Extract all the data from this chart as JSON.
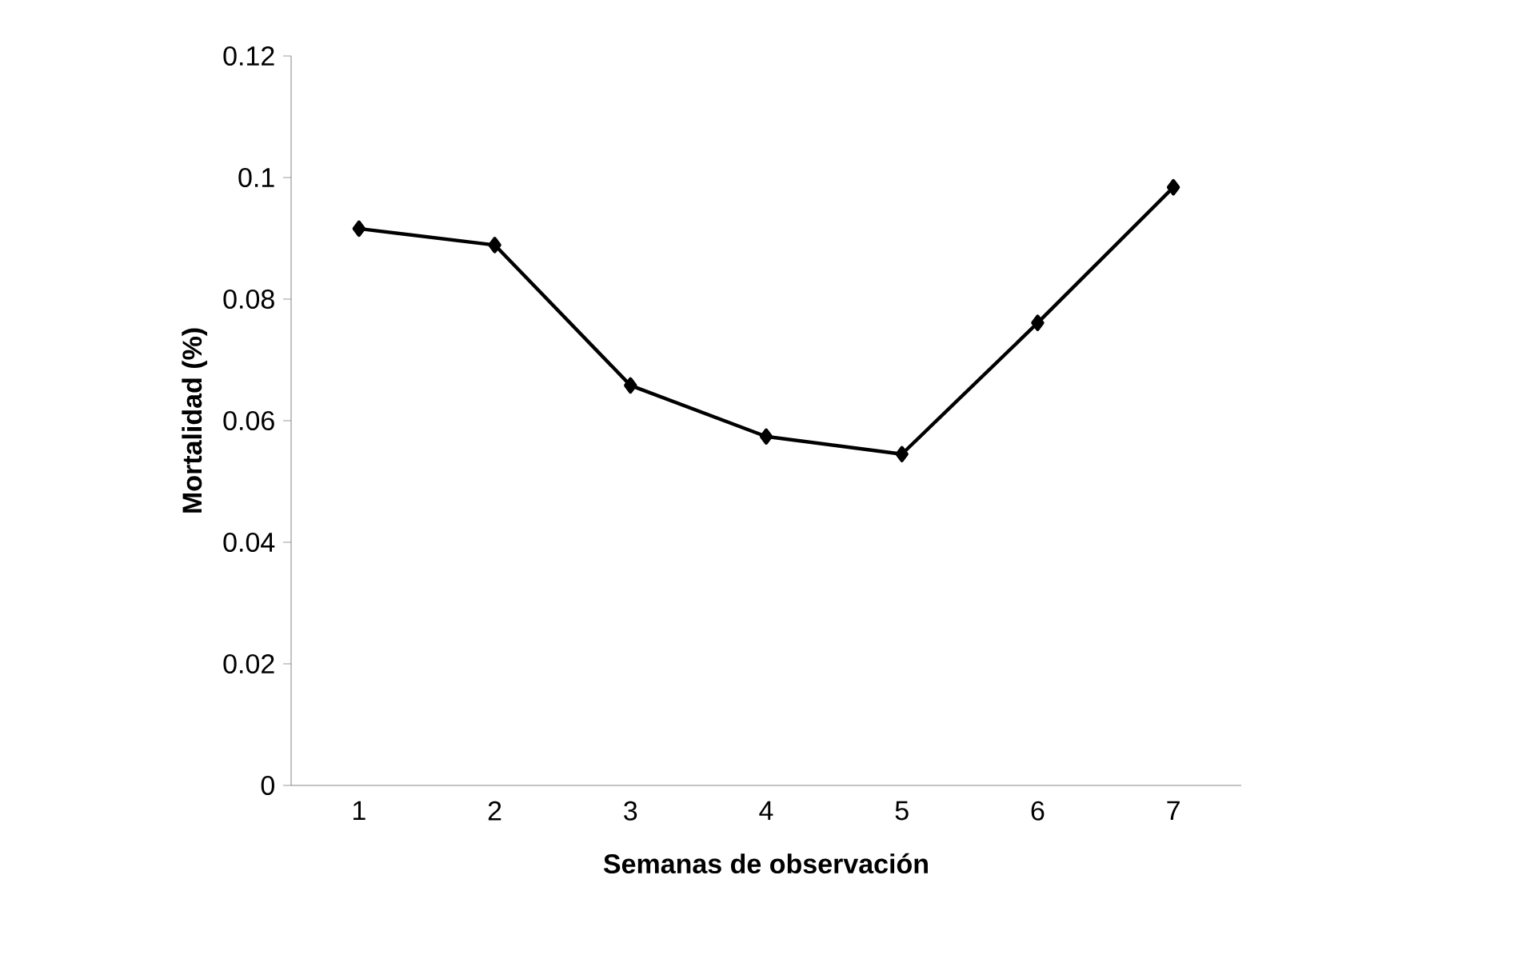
{
  "chart_data": {
    "type": "line",
    "xlabel": "Semanas de observación",
    "ylabel": "Mortalidad (%)",
    "categories": [
      "1",
      "2",
      "3",
      "4",
      "5",
      "6",
      "7"
    ],
    "series": [
      {
        "color": "#000000",
        "values": [
          0.0916,
          0.0889,
          0.0658,
          0.0574,
          0.0545,
          0.0761,
          0.0984
        ]
      }
    ],
    "ylim": [
      0,
      0.12
    ],
    "yticks": [
      0,
      0.02,
      0.04,
      0.06,
      0.08,
      0.1,
      0.12
    ],
    "grid": false,
    "marker": "diamond",
    "line_style": "solid"
  }
}
